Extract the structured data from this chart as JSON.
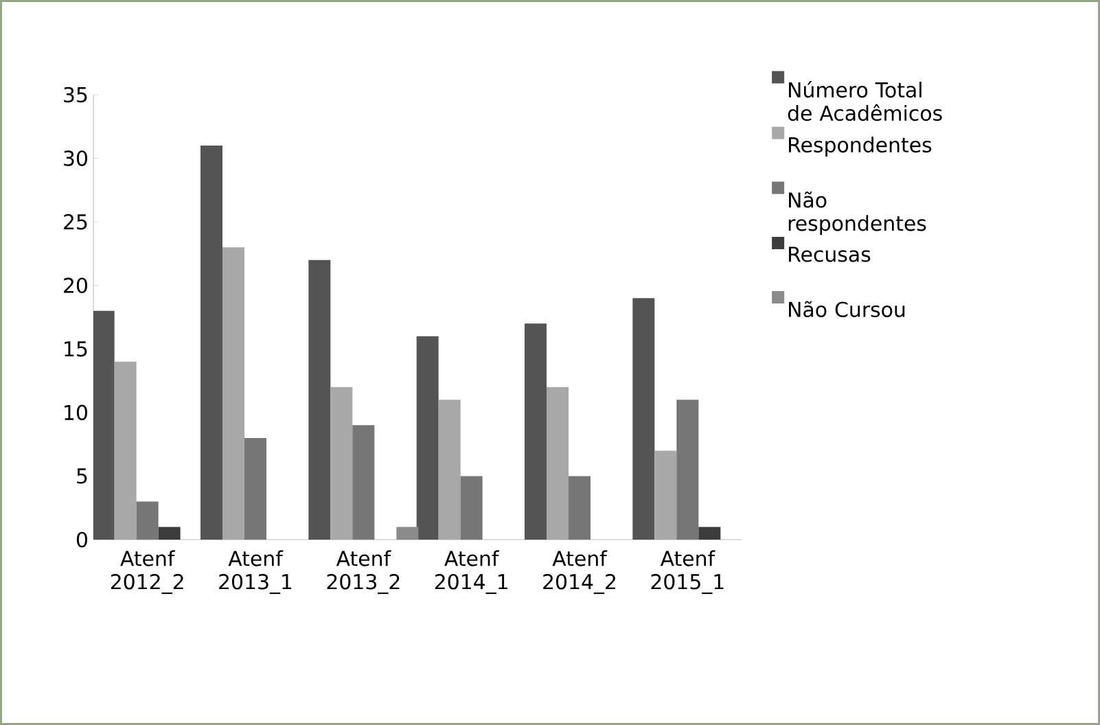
{
  "chart_data": {
    "type": "bar",
    "categories": [
      "Atenf 2012_2",
      "Atenf 2013_1",
      "Atenf 2013_2",
      "Atenf 2014_1",
      "Atenf 2014_2",
      "Atenf 2015_1"
    ],
    "series": [
      {
        "name": "Número Total de Acadêmicos",
        "color": "#545454",
        "values": [
          18,
          31,
          22,
          16,
          17,
          19
        ]
      },
      {
        "name": "Respondentes",
        "color": "#a8a8a8",
        "values": [
          14,
          23,
          12,
          11,
          12,
          7
        ]
      },
      {
        "name": "Não respondentes",
        "color": "#767676",
        "values": [
          3,
          8,
          9,
          5,
          5,
          11
        ]
      },
      {
        "name": "Recusas",
        "color": "#3c3c3c",
        "values": [
          1,
          0,
          0,
          0,
          0,
          1
        ]
      },
      {
        "name": "Não Cursou",
        "color": "#8a8a8a",
        "values": [
          0,
          0,
          1,
          0,
          0,
          0
        ]
      }
    ],
    "ylim": [
      0,
      35
    ],
    "yticks": [
      0,
      5,
      10,
      15,
      20,
      25,
      30,
      35
    ],
    "grid": false,
    "legend": "right"
  }
}
